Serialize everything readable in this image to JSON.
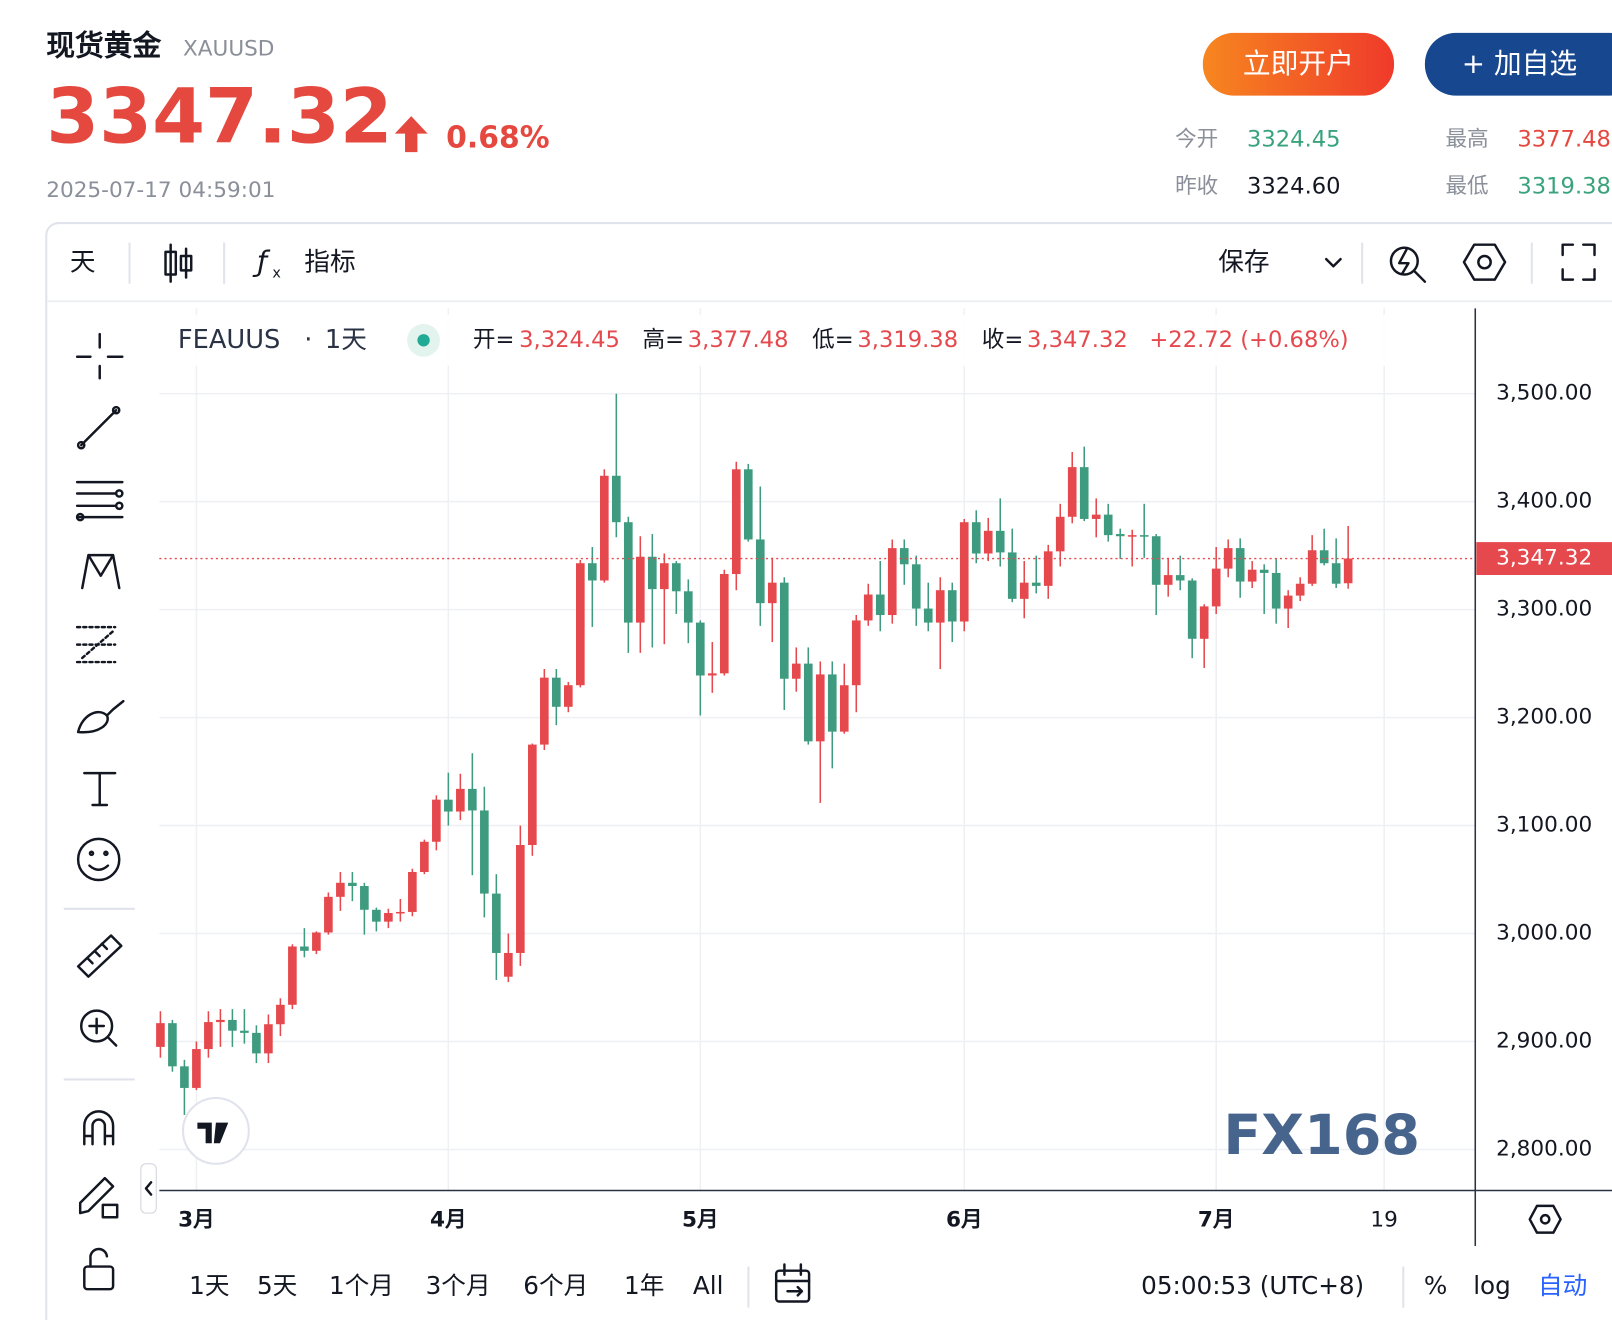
{
  "header": {
    "title": "现货黄金",
    "symbol": "XAUUSD",
    "price": "3347.32",
    "change": "0.68%",
    "time": "2025-07-17 04:59:01"
  },
  "buttons": [
    "立即开户",
    "+ 加自选"
  ],
  "stats": [
    {
      "label": "今开",
      "value": "3324.45"
    },
    {
      "label": "最高",
      "value": "3377.48"
    },
    {
      "label": "昨收",
      "value": "3324.60"
    },
    {
      "label": "最低",
      "value": "3319.38"
    }
  ],
  "toolbar": {
    "interval": "天",
    "indicators": "指标",
    "save": "保存"
  },
  "chart_data": {
    "type": "candlestick",
    "interval": "1天",
    "series": [
      {
        "name": "FEAUUS",
        "up_color": "#e5494d",
        "down_color": "#3f9b7f",
        "open": [
          2895,
          2917,
          2877,
          2857,
          2893,
          2918,
          2920,
          2910,
          2908,
          2889,
          2916,
          2934,
          2988,
          2984,
          3001,
          3034,
          3047,
          3044,
          3022,
          3011,
          3019,
          3020,
          3057,
          3085,
          3124,
          3113,
          3134,
          3114,
          3037,
          2960,
          2982,
          3082,
          3175,
          3237,
          3210,
          3230,
          3343,
          3327,
          3424,
          3381,
          3288,
          3349,
          3319,
          3343,
          3317,
          3288,
          3239,
          3241,
          3333,
          3430,
          3365,
          3306,
          3325,
          3236,
          3250,
          3178,
          3240,
          3187,
          3230,
          3290,
          3314,
          3295,
          3357,
          3342,
          3301,
          3288,
          3318,
          3289,
          3381,
          3352,
          3373,
          3353,
          3310,
          3325,
          3322,
          3354,
          3386,
          3432,
          3384,
          3388,
          3370,
          3368,
          3369,
          3368,
          3323,
          3332,
          3327,
          3273,
          3303,
          3338,
          3357,
          3326,
          3337,
          3334,
          3301,
          3313,
          3324,
          3355,
          3343,
          3324.45,
          null,
          null,
          null
        ],
        "high": [
          2928,
          2920,
          2883,
          2900,
          2928,
          2930,
          2930,
          2930,
          2915,
          2925,
          2940,
          2990,
          3005,
          3002,
          3038,
          3057,
          3057,
          3047,
          3024,
          3023,
          3032,
          3060,
          3087,
          3128,
          3149,
          3148,
          3167,
          3136,
          3055,
          3000,
          3100,
          3176,
          3245,
          3245,
          3233,
          3346,
          3358,
          3430,
          3500,
          3386,
          3368,
          3370,
          3352,
          3345,
          3328,
          3290,
          3270,
          3337,
          3437,
          3435,
          3414,
          3348,
          3330,
          3265,
          3265,
          3252,
          3252,
          3250,
          3295,
          3324,
          3345,
          3365,
          3365,
          3350,
          3325,
          3330,
          3325,
          3384,
          3392,
          3385,
          3403,
          3375,
          3345,
          3350,
          3360,
          3398,
          3446,
          3451,
          3403,
          3398,
          3375,
          3374,
          3398,
          3370,
          3348,
          3350,
          3329,
          3305,
          3358,
          3365,
          3366,
          3345,
          3342,
          3347,
          3318,
          3330,
          3369,
          3375,
          3366,
          3377.48,
          null,
          null,
          null
        ],
        "low": [
          2885,
          2872,
          2832,
          2855,
          2885,
          2895,
          2895,
          2898,
          2880,
          2880,
          2905,
          2930,
          2978,
          2981,
          2999,
          3021,
          3030,
          2999,
          3002,
          3005,
          3011,
          3016,
          3055,
          3077,
          3100,
          3105,
          3054,
          3015,
          2957,
          2955,
          2970,
          3072,
          3170,
          3193,
          3205,
          3228,
          3284,
          3325,
          3367,
          3260,
          3260,
          3265,
          3268,
          3296,
          3269,
          3202,
          3223,
          3239,
          3318,
          3363,
          3285,
          3270,
          3207,
          3224,
          3175,
          3121,
          3153,
          3185,
          3205,
          3285,
          3280,
          3287,
          3323,
          3285,
          3280,
          3245,
          3270,
          3280,
          3343,
          3345,
          3340,
          3307,
          3292,
          3315,
          3310,
          3340,
          3380,
          3382,
          3367,
          3363,
          3347,
          3340,
          3348,
          3295,
          3312,
          3318,
          3255,
          3246,
          3296,
          3330,
          3311,
          3320,
          3296,
          3287,
          3283,
          3308,
          3322,
          3341,
          3320,
          3319.38,
          null,
          null,
          null
        ],
        "close": [
          2917,
          2877,
          2857,
          2893,
          2918,
          2920,
          2910,
          2908,
          2889,
          2916,
          2934,
          2988,
          2984,
          3001,
          3034,
          3047,
          3044,
          3022,
          3011,
          3019,
          3020,
          3057,
          3085,
          3124,
          3113,
          3134,
          3114,
          3037,
          2982,
          2982,
          3082,
          3175,
          3237,
          3210,
          3230,
          3343,
          3327,
          3424,
          3381,
          3288,
          3349,
          3319,
          3343,
          3317,
          3288,
          3239,
          3241,
          3333,
          3430,
          3365,
          3306,
          3325,
          3236,
          3250,
          3178,
          3240,
          3187,
          3230,
          3290,
          3314,
          3295,
          3357,
          3342,
          3301,
          3288,
          3318,
          3289,
          3381,
          3352,
          3373,
          3353,
          3310,
          3325,
          3322,
          3354,
          3386,
          3432,
          3384,
          3388,
          3369,
          3368,
          3369,
          3368,
          3323,
          3332,
          3327,
          3273,
          3303,
          3338,
          3357,
          3326,
          3337,
          3334,
          3301,
          3313,
          3324,
          3355,
          3343,
          3324,
          3347.32,
          null,
          null,
          null
        ]
      }
    ],
    "legend": {
      "labels": [
        "开=",
        "高=",
        "低=",
        "收="
      ],
      "values": [
        "3,324.45",
        "3,377.48",
        "3,319.38",
        "3,347.32"
      ],
      "change": "+22.72 (+0.68%)"
    },
    "categories": [
      null,
      null,
      null,
      "3月",
      null,
      null,
      null,
      null,
      null,
      null,
      null,
      null,
      null,
      null,
      null,
      null,
      null,
      null,
      null,
      null,
      null,
      null,
      null,
      null,
      "4月",
      null,
      null,
      null,
      null,
      null,
      null,
      null,
      null,
      null,
      null,
      null,
      null,
      null,
      null,
      null,
      null,
      null,
      null,
      null,
      null,
      "5月",
      null,
      null,
      null,
      null,
      null,
      null,
      null,
      null,
      null,
      null,
      null,
      null,
      null,
      null,
      null,
      null,
      null,
      null,
      null,
      null,
      null,
      "6月",
      null,
      null,
      null,
      null,
      null,
      null,
      null,
      null,
      null,
      null,
      null,
      null,
      null,
      null,
      null,
      null,
      null,
      null,
      null,
      null,
      "7月",
      null,
      null,
      null,
      null,
      null,
      null,
      null,
      null,
      null,
      null,
      null,
      null,
      null,
      "19"
    ],
    "ylim": [
      2762,
      3579
    ],
    "yticks": [
      {
        "value": 2800,
        "label": "2,800.00"
      },
      {
        "value": 2900,
        "label": "2,900.00"
      },
      {
        "value": 3000,
        "label": "3,000.00"
      },
      {
        "value": 3100,
        "label": "3,100.00"
      },
      {
        "value": 3200,
        "label": "3,200.00"
      },
      {
        "value": 3300,
        "label": "3,300.00"
      },
      {
        "value": 3400,
        "label": "3,400.00"
      },
      {
        "value": 3500,
        "label": "3,500.00"
      }
    ],
    "grid": true,
    "last_price": {
      "value": 3347.32,
      "label": "3,347.32"
    }
  },
  "footer": {
    "ranges": [
      "1天",
      "5天",
      "1个月",
      "3个月",
      "6个月",
      "1年",
      "All"
    ],
    "time": "05:00:53 (UTC+8)",
    "percent": "%",
    "log": "log",
    "auto": "自动"
  },
  "watermark": "FX168"
}
